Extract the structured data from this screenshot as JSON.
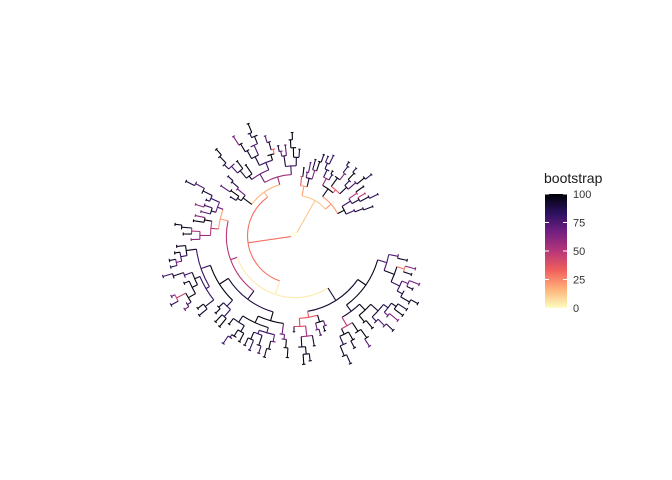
{
  "legend": {
    "title": "bootstrap",
    "ticks": [
      "0",
      "25",
      "50",
      "75",
      "100"
    ],
    "tick_values": [
      0,
      25,
      50,
      75,
      100
    ],
    "range": [
      0,
      100
    ],
    "colors": [
      "#fcfdbf",
      "#feb078",
      "#f1605d",
      "#b63679",
      "#721f81",
      "#2d1160",
      "#000004"
    ],
    "palette_name": "magma (reversed)"
  },
  "tree": {
    "layout": "fan / spiral phylogenetic tree",
    "edge_color_variable": "bootstrap",
    "leaf_edge_color": "#000004"
  }
}
